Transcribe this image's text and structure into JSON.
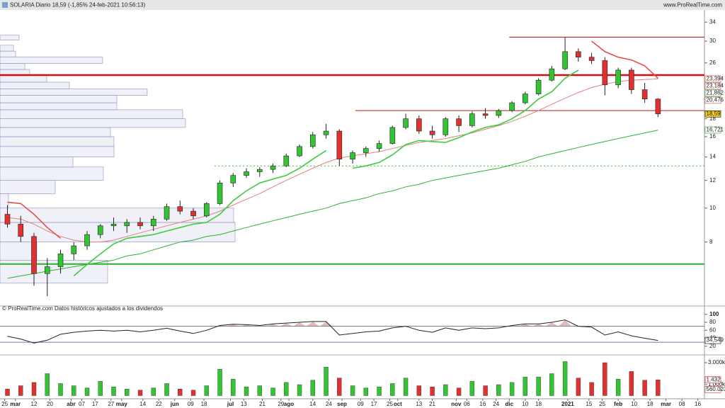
{
  "chart_data": [
    {
      "type": "candlestick",
      "title": "SOLARIA Diario 18,59 (-1,85% 24-feb-2021 10:56:13)",
      "source": "www.ProRealTime.com",
      "note": "© ProRealTime.com Datos históricos ajustados a los dividendos",
      "log_scale": true,
      "xlim": [
        -0.8,
        264.5
      ],
      "xticks": [
        {
          "value": 1,
          "label": "25"
        },
        {
          "value": 5,
          "label": "mar"
        },
        {
          "value": 12,
          "label": "12"
        },
        {
          "value": 18,
          "label": "20"
        },
        {
          "value": 26,
          "label": "abr"
        },
        {
          "value": 30,
          "label": "07"
        },
        {
          "value": 35,
          "label": "17"
        },
        {
          "value": 41,
          "label": "27"
        },
        {
          "value": 45,
          "label": "may"
        },
        {
          "value": 53,
          "label": "14"
        },
        {
          "value": 59,
          "label": "22"
        },
        {
          "value": 65,
          "label": "jun"
        },
        {
          "value": 71,
          "label": "09"
        },
        {
          "value": 76,
          "label": "18"
        },
        {
          "value": 86,
          "label": "jul"
        },
        {
          "value": 91,
          "label": "13"
        },
        {
          "value": 98,
          "label": "21"
        },
        {
          "value": 105,
          "label": "29"
        },
        {
          "value": 108,
          "label": "ago"
        },
        {
          "value": 117,
          "label": "14"
        },
        {
          "value": 123,
          "label": "24"
        },
        {
          "value": 128,
          "label": "sep"
        },
        {
          "value": 135,
          "label": "09"
        },
        {
          "value": 140,
          "label": "17"
        },
        {
          "value": 146,
          "label": "25"
        },
        {
          "value": 149,
          "label": "oct"
        },
        {
          "value": 157,
          "label": "13"
        },
        {
          "value": 162,
          "label": "21"
        },
        {
          "value": 171,
          "label": "nov"
        },
        {
          "value": 175,
          "label": "06"
        },
        {
          "value": 181,
          "label": "16"
        },
        {
          "value": 186,
          "label": "24"
        },
        {
          "value": 191,
          "label": "dic"
        },
        {
          "value": 197,
          "label": "10"
        },
        {
          "value": 202,
          "label": "18"
        },
        {
          "value": 213,
          "label": "2021"
        },
        {
          "value": 221,
          "label": "15"
        },
        {
          "value": 226,
          "label": "25"
        },
        {
          "value": 232,
          "label": "feb"
        },
        {
          "value": 238,
          "label": "10"
        },
        {
          "value": 244,
          "label": "18"
        },
        {
          "value": 250,
          "label": "mar"
        },
        {
          "value": 256,
          "label": "08"
        },
        {
          "value": 262,
          "label": "16"
        }
      ],
      "ylim": [
        5.3,
        36.5
      ],
      "yticks": [
        8,
        10,
        12,
        14,
        16,
        18,
        26,
        30,
        34
      ],
      "up_color": "#33c433",
      "down_color": "#e03030",
      "x": [
        2,
        7,
        12,
        17,
        22,
        27,
        32,
        37,
        42,
        47,
        52,
        57,
        62,
        67,
        72,
        77,
        82,
        87,
        92,
        97,
        102,
        107,
        112,
        117,
        122,
        127,
        132,
        137,
        142,
        147,
        152,
        157,
        162,
        167,
        172,
        177,
        182,
        187,
        192,
        197,
        202,
        207,
        212,
        217,
        222,
        227,
        232,
        237,
        242,
        247
      ],
      "open": [
        9.6,
        9.0,
        8.3,
        6.5,
        6.8,
        7.4,
        7.8,
        8.4,
        8.9,
        8.9,
        9.1,
        8.9,
        9.3,
        10.1,
        9.8,
        9.5,
        10.3,
        11.8,
        12.4,
        12.7,
        12.9,
        13.2,
        14.1,
        15.0,
        16.2,
        16.6,
        13.8,
        14.4,
        14.8,
        15.3,
        17.0,
        18.0,
        16.6,
        16.2,
        18.0,
        17.2,
        18.6,
        18.4,
        19.0,
        20.0,
        21.2,
        23.2,
        25.0,
        28.0,
        27.0,
        26.4,
        22.5,
        24.8,
        21.8,
        20.5
      ],
      "high": [
        10.2,
        9.5,
        8.5,
        7.2,
        7.6,
        8.0,
        8.6,
        9.0,
        9.4,
        9.3,
        9.4,
        9.5,
        10.3,
        10.5,
        10.0,
        10.4,
        12.0,
        12.6,
        13.0,
        13.1,
        13.4,
        14.3,
        15.2,
        16.5,
        17.4,
        16.8,
        14.6,
        15.0,
        15.6,
        17.2,
        18.6,
        18.4,
        17.2,
        18.2,
        18.4,
        18.9,
        19.3,
        19.2,
        20.2,
        21.5,
        23.5,
        25.5,
        30.8,
        28.6,
        27.8,
        27.0,
        25.2,
        25.2,
        22.8,
        20.6
      ],
      "low": [
        8.8,
        8.0,
        6.0,
        5.6,
        6.5,
        7.1,
        7.6,
        8.2,
        8.6,
        8.5,
        8.7,
        8.6,
        9.2,
        9.6,
        9.3,
        9.4,
        10.2,
        11.5,
        12.2,
        12.3,
        12.6,
        13.1,
        14.0,
        14.8,
        15.8,
        13.2,
        13.4,
        14.0,
        14.5,
        15.2,
        16.8,
        16.3,
        15.8,
        16.0,
        16.5,
        17.0,
        18.0,
        18.1,
        18.8,
        19.8,
        21.0,
        23.0,
        24.8,
        26.2,
        25.8,
        21.0,
        22.0,
        21.2,
        20.0,
        18.2
      ],
      "close": [
        9.0,
        8.3,
        6.5,
        6.8,
        7.4,
        7.8,
        8.4,
        8.9,
        9.0,
        9.1,
        8.9,
        9.3,
        10.1,
        9.8,
        9.5,
        10.3,
        11.8,
        12.4,
        12.7,
        12.9,
        13.2,
        14.1,
        15.0,
        16.2,
        16.6,
        13.8,
        14.4,
        14.8,
        15.3,
        17.0,
        18.0,
        16.6,
        16.2,
        18.0,
        17.2,
        18.6,
        18.4,
        19.0,
        20.0,
        21.2,
        23.2,
        25.0,
        28.0,
        27.0,
        26.4,
        22.5,
        24.8,
        21.8,
        20.5,
        18.59
      ],
      "lines": [
        {
          "color": "#2fb02f",
          "width": 1,
          "values": [
            6.3,
            6.4,
            6.5,
            6.6,
            6.7,
            6.8,
            6.9,
            7.0,
            7.1,
            7.3,
            7.4,
            7.6,
            7.8,
            8.0,
            8.1,
            8.3,
            8.4,
            8.6,
            8.8,
            9.0,
            9.2,
            9.4,
            9.6,
            9.8,
            10.0,
            10.3,
            10.5,
            10.7,
            11.0,
            11.2,
            11.5,
            11.7,
            12.0,
            12.2,
            12.4,
            12.6,
            12.8,
            13.0,
            13.3,
            13.6,
            14.0,
            14.3,
            14.6,
            14.9,
            15.2,
            15.5,
            15.8,
            16.1,
            16.4,
            16.7
          ]
        },
        {
          "color": "#e08080",
          "width": 1,
          "values": [
            9.4,
            9.3,
            9.0,
            8.6,
            8.3,
            8.1,
            8.0,
            8.0,
            8.1,
            8.3,
            8.5,
            8.7,
            8.9,
            9.1,
            9.3,
            9.5,
            9.8,
            10.2,
            10.6,
            11.0,
            11.5,
            12.0,
            12.5,
            13.0,
            13.5,
            13.9,
            14.1,
            14.3,
            14.5,
            14.8,
            15.1,
            15.4,
            15.6,
            15.8,
            16.1,
            16.4,
            16.8,
            17.2,
            17.7,
            18.3,
            19.0,
            19.8,
            20.6,
            21.4,
            22.1,
            22.6,
            23.0,
            23.2,
            23.3,
            23.4
          ]
        },
        {
          "color": "#3ccc3c",
          "width": 1.6,
          "values": [
            null,
            null,
            null,
            null,
            null,
            6.4,
            6.9,
            7.4,
            7.9,
            8.2,
            8.3,
            8.4,
            8.6,
            8.8,
            9.0,
            9.1,
            9.6,
            10.5,
            11.2,
            11.8,
            12.1,
            12.4,
            13.0,
            13.8,
            14.6,
            null,
            13.0,
            13.2,
            13.5,
            14.2,
            15.2,
            15.6,
            15.5,
            15.4,
            15.9,
            16.5,
            17.0,
            17.3,
            18.0,
            19.0,
            20.5,
            21.5,
            23.5,
            24.8,
            null,
            null,
            null,
            null,
            null,
            null
          ]
        },
        {
          "color": "#e05050",
          "width": 1.6,
          "values": [
            10.4,
            10.3,
            9.6,
            8.8,
            8.2,
            null,
            null,
            null,
            null,
            null,
            null,
            null,
            null,
            null,
            null,
            null,
            null,
            null,
            null,
            null,
            null,
            null,
            null,
            null,
            null,
            17.4,
            null,
            null,
            null,
            null,
            null,
            null,
            null,
            null,
            null,
            null,
            null,
            null,
            null,
            null,
            null,
            null,
            null,
            null,
            30.0,
            28.0,
            27.0,
            26.5,
            25.5,
            23.5
          ]
        }
      ],
      "levels": [
        {
          "value": 24.0,
          "start": -0.8,
          "color": "#d01010",
          "width": 2.5
        },
        {
          "value": 30.8,
          "start": 191,
          "color": "#c81818",
          "width": 1.2
        },
        {
          "value": 19.0,
          "start": 133,
          "color": "#c81818",
          "width": 1
        },
        {
          "value": 6.92,
          "start": -0.8,
          "color": "#2fb02f",
          "width": 2
        },
        {
          "value": 13.2,
          "start": 80,
          "color": "#3cb83c",
          "width": 1,
          "dash": "2,3"
        }
      ],
      "badges": [
        {
          "value": 23.394,
          "label": "23,394",
          "color": "#d04040",
          "bg": "#ffffff"
        },
        {
          "value": 23.184,
          "label": "23,184",
          "color": "#d04040",
          "bg": "#ffffff"
        },
        {
          "value": 21.862,
          "label": "21,862",
          "color": "#2fa02f",
          "bg": "#ffffff"
        },
        {
          "value": 20.476,
          "label": "20,476",
          "color": "#d04040",
          "bg": "#ffffff"
        },
        {
          "value": 18.59,
          "label": "18,59",
          "color": "#000000",
          "bg": "#f5d020"
        },
        {
          "value": 16.721,
          "label": "16,721",
          "color": "#2fa02f",
          "bg": "#ffffff"
        }
      ],
      "volume_profile": {
        "color": "#e6e8f4",
        "stroke": "#8a8fb8",
        "bins": [
          6.1,
          7.1,
          8.0,
          9.1,
          10.0,
          11.0,
          12.0,
          13.1,
          14.0,
          15.0,
          16.0,
          17.0,
          18.0,
          19.1,
          20.0,
          21.0,
          21.9,
          22.9,
          24.0,
          24.9,
          25.9,
          27.0,
          28.1,
          29.2,
          30.2,
          31.2
        ],
        "values": [
          152,
          52,
          332,
          330,
          12,
          78,
          146,
          103,
          161,
          161,
          156,
          262,
          258,
          165,
          165,
          208,
          98,
          66,
          42,
          35,
          145,
          22,
          19,
          0,
          27
        ]
      }
    },
    {
      "type": "line",
      "color": "#222222",
      "fill_color": "#c89090",
      "ylim": [
        0,
        112
      ],
      "yticks": [
        100,
        80,
        60,
        40,
        20
      ],
      "levels": [
        70,
        30
      ],
      "values": [
        45,
        38,
        28,
        35,
        50,
        55,
        58,
        60,
        58,
        60,
        56,
        60,
        65,
        58,
        52,
        60,
        72,
        75,
        74,
        72,
        76,
        78,
        80,
        82,
        82,
        48,
        52,
        56,
        58,
        66,
        70,
        60,
        55,
        66,
        60,
        66,
        64,
        66,
        72,
        76,
        76,
        80,
        86,
        70,
        68,
        48,
        56,
        46,
        40,
        34.549
      ],
      "badges": [
        {
          "value": 34.549,
          "label": "34,549",
          "color": "#000000",
          "bg": "#ffffff"
        }
      ]
    },
    {
      "type": "bar",
      "ylim": [
        0,
        3580
      ],
      "yticks": [
        {
          "value": 3000,
          "label": "3.000k"
        },
        {
          "value": 1000,
          "label": "1.000k"
        }
      ],
      "values": [
        600,
        900,
        1200,
        2000,
        1100,
        900,
        700,
        1300,
        800,
        600,
        500,
        700,
        1100,
        600,
        500,
        900,
        2400,
        1500,
        800,
        900,
        700,
        1200,
        1000,
        1400,
        2600,
        1600,
        900,
        700,
        800,
        1100,
        1600,
        900,
        800,
        1000,
        700,
        1300,
        900,
        1000,
        1200,
        1700,
        1700,
        2000,
        3100,
        1600,
        1200,
        3000,
        1500,
        2200,
        1400,
        1432
      ],
      "badges": [
        {
          "value": 1432,
          "label": "1.432",
          "color": "#d00000",
          "bg": "#ffffff"
        },
        {
          "value": 560.023,
          "label": "560.023",
          "color": "#c04040",
          "bg": "#ffffff"
        }
      ]
    }
  ]
}
